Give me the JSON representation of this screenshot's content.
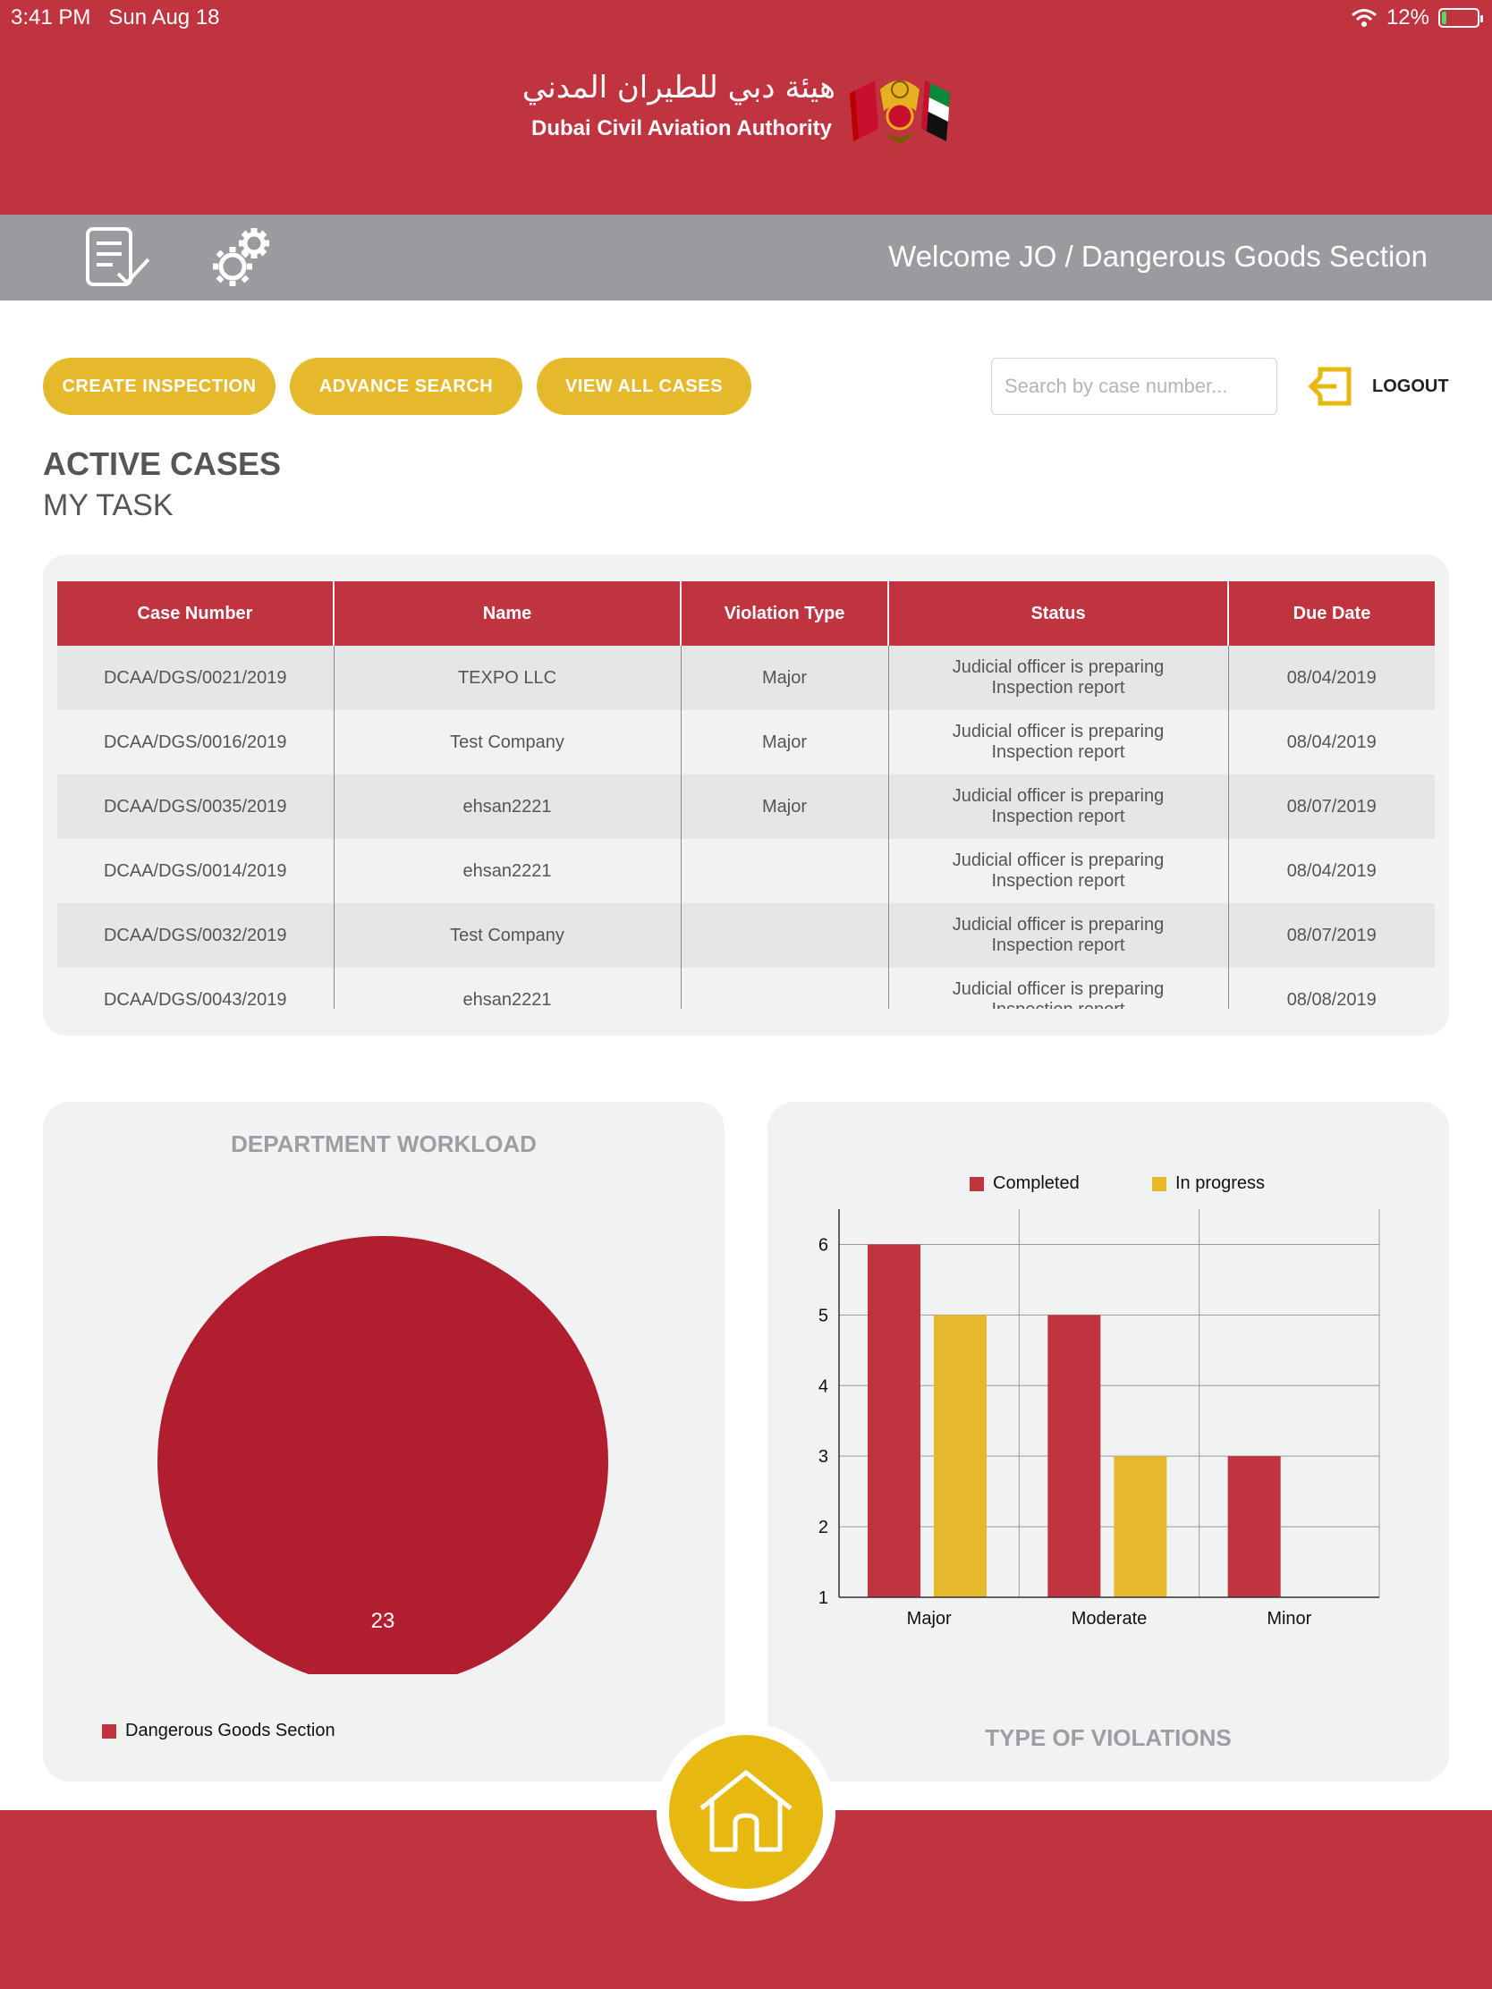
{
  "status_bar": {
    "time": "3:41 PM",
    "date": "Sun Aug 18",
    "battery": "12%",
    "battery_level": 0.12
  },
  "brand": {
    "arabic_name": "هيئة دبي للطيران المدني",
    "english_name": "Dubai Civil Aviation Authority"
  },
  "nav": {
    "icons": [
      "checklist-icon",
      "gears-icon"
    ],
    "welcome": "Welcome JO / Dangerous Goods Section"
  },
  "actions": {
    "create_inspection": "CREATE INSPECTION",
    "advance_search": "ADVANCE SEARCH",
    "view_all_cases": "VIEW ALL CASES",
    "search_placeholder": "Search by case number...",
    "logout": "LOGOUT"
  },
  "section": {
    "title": "ACTIVE CASES",
    "subtitle": "MY TASK"
  },
  "table": {
    "columns": [
      "Case Number",
      "Name",
      "Violation Type",
      "Status",
      "Due Date"
    ],
    "rows": [
      {
        "case_number": "DCAA/DGS/0021/2019",
        "name": "TEXPO LLC",
        "violation": "Major",
        "status_1": "Judicial officer is preparing",
        "status_2": "Inspection report",
        "due": "08/04/2019"
      },
      {
        "case_number": "DCAA/DGS/0016/2019",
        "name": "Test Company",
        "violation": "Major",
        "status_1": "Judicial officer is preparing",
        "status_2": "Inspection report",
        "due": "08/04/2019"
      },
      {
        "case_number": "DCAA/DGS/0035/2019",
        "name": "ehsan2221",
        "violation": "Major",
        "status_1": "Judicial officer is preparing",
        "status_2": "Inspection report",
        "due": "08/07/2019"
      },
      {
        "case_number": "DCAA/DGS/0014/2019",
        "name": "ehsan2221",
        "violation": "",
        "status_1": "Judicial officer is preparing",
        "status_2": "Inspection report",
        "due": "08/04/2019"
      },
      {
        "case_number": "DCAA/DGS/0032/2019",
        "name": "Test Company",
        "violation": "",
        "status_1": "Judicial officer is preparing",
        "status_2": "Inspection report",
        "due": "08/07/2019"
      },
      {
        "case_number": "DCAA/DGS/0043/2019",
        "name": "ehsan2221",
        "violation": "",
        "status_1": "Judicial officer is preparing",
        "status_2": "Inspection report",
        "due": "08/08/2019"
      }
    ]
  },
  "workload": {
    "title": "DEPARTMENT WORKLOAD",
    "legend": "Dangerous Goods Section",
    "color": "#b11e2f"
  },
  "violations": {
    "title": "TYPE OF VIOLATIONS",
    "legend_completed": "Completed",
    "legend_in_progress": "In progress"
  },
  "colors": {
    "red": "#c03440",
    "yellow": "#e6b92c",
    "gray": "#9a9b9e"
  },
  "chart_data": [
    {
      "type": "pie",
      "title": "DEPARTMENT WORKLOAD",
      "labels": [
        "Dangerous Goods Section"
      ],
      "values": [
        23
      ],
      "legend": "bottom-left"
    },
    {
      "type": "bar",
      "title": "TYPE OF VIOLATIONS",
      "categories": [
        "Major",
        "Moderate",
        "Minor"
      ],
      "series": [
        {
          "name": "Completed",
          "values": [
            6,
            5,
            3
          ],
          "color": "#c03440"
        },
        {
          "name": "In progress",
          "values": [
            5,
            3,
            null
          ],
          "color": "#e6b92c"
        }
      ],
      "yticks": [
        1,
        2,
        3,
        4,
        5,
        6
      ],
      "ylim": [
        1,
        6.5
      ],
      "grid": true,
      "legend": "top"
    }
  ]
}
